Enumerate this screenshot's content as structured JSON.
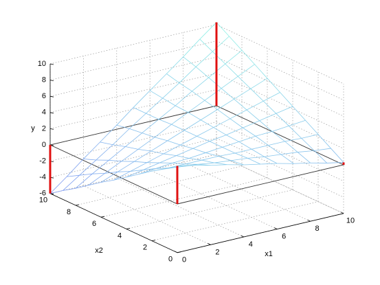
{
  "chart_data": {
    "type": "mesh",
    "xlabel": "x1",
    "ylabel": "x2",
    "zlabel": "y",
    "x": [
      0,
      1,
      2,
      3,
      4,
      5,
      6,
      7,
      8,
      9,
      10
    ],
    "y": [
      0,
      1,
      2,
      3,
      4,
      5,
      6,
      7,
      8,
      9,
      10
    ],
    "z": [
      [
        4.7,
        4.3,
        3.8,
        3.4,
        2.9,
        2.5,
        2.1,
        1.6,
        1.2,
        0.7,
        0.3
      ],
      [
        3.6,
        3.4,
        3.2,
        2.9,
        2.7,
        2.5,
        2.2,
        2,
        1.8,
        1.5,
        1.3
      ],
      [
        2.6,
        2.5,
        2.5,
        2.5,
        2.5,
        2.4,
        2.4,
        2.4,
        2.4,
        2.3,
        2.3
      ],
      [
        1.5,
        1.7,
        1.9,
        2,
        2.2,
        2.4,
        2.6,
        2.8,
        2.9,
        3.1,
        3.3
      ],
      [
        0.4,
        0.8,
        1.2,
        1.6,
        2,
        2.4,
        2.7,
        3.1,
        3.5,
        3.9,
        4.3
      ],
      [
        -0.7,
        -0.1,
        0.5,
        1.1,
        1.7,
        2.3,
        2.9,
        3.5,
        4.1,
        4.7,
        5.3
      ],
      [
        -1.7,
        -0.9,
        -0.1,
        0.7,
        1.5,
        2.3,
        3.1,
        3.9,
        4.7,
        5.5,
        6.3
      ],
      [
        -2.8,
        -1.8,
        -0.8,
        0.2,
        1.2,
        2.3,
        3.3,
        4.3,
        5.3,
        6.3,
        7.3
      ],
      [
        -3.9,
        -2.6,
        -1.4,
        -0.2,
        1,
        2.2,
        3.4,
        4.7,
        5.9,
        7.1,
        8.3
      ],
      [
        -4.9,
        -3.5,
        -2.1,
        -0.7,
        0.8,
        2.2,
        3.6,
        5,
        6.5,
        7.9,
        9.3
      ],
      [
        -6,
        -4.4,
        -2.7,
        -1.1,
        0.5,
        2.2,
        3.8,
        5.4,
        7,
        8.7,
        10.3
      ]
    ],
    "xlim": [
      0,
      10
    ],
    "ylim": [
      0,
      10
    ],
    "zlim": [
      -6,
      10
    ],
    "xticks": [
      0,
      2,
      4,
      6,
      8,
      10
    ],
    "yticks": [
      0,
      2,
      4,
      6,
      8,
      10
    ],
    "zticks": [
      -6,
      -4,
      -2,
      0,
      2,
      4,
      6,
      8,
      10
    ],
    "grid": true,
    "colors": [
      "#7e96f2",
      "#8ff2e6"
    ],
    "stem_color": "#e01010"
  }
}
